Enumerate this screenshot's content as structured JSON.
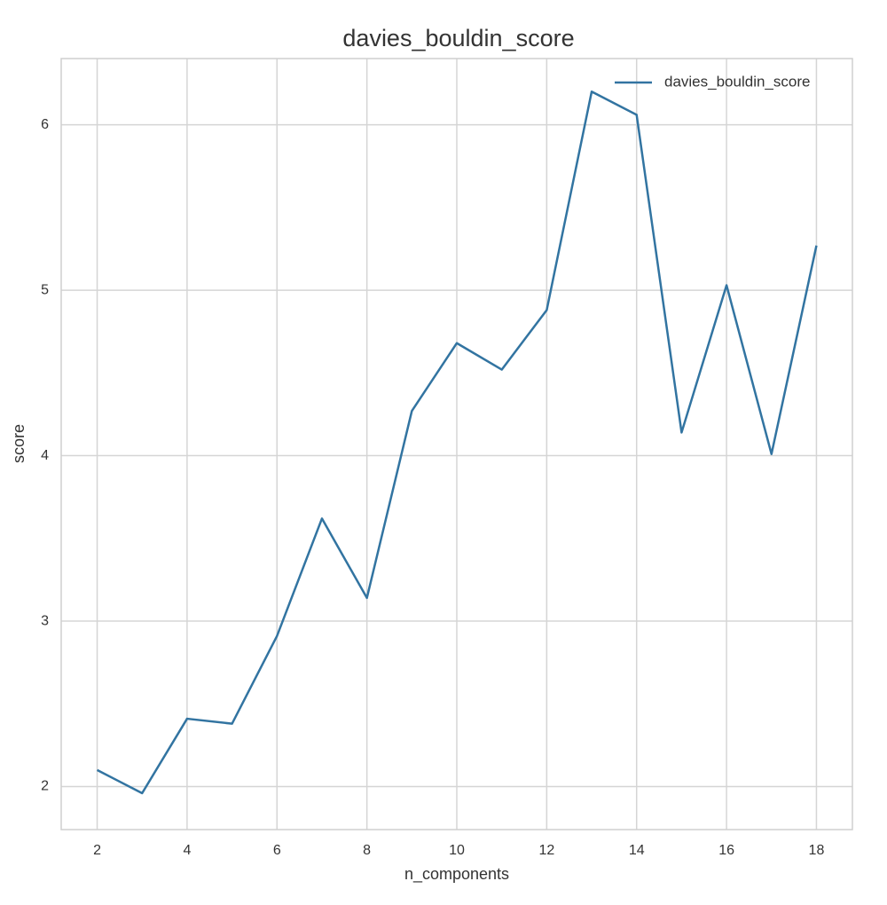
{
  "chart_data": {
    "type": "line",
    "title": "davies_bouldin_score",
    "x_label": "n_components",
    "y_label": "score",
    "x": [
      2,
      3,
      4,
      5,
      6,
      7,
      8,
      9,
      10,
      11,
      12,
      13,
      14,
      15,
      16,
      17,
      18
    ],
    "series": [
      {
        "name": "davies_bouldin_score",
        "color": "#3274a1",
        "values": [
          2.1,
          1.96,
          2.41,
          2.38,
          2.91,
          3.62,
          3.14,
          4.27,
          4.68,
          4.52,
          4.88,
          6.2,
          6.06,
          4.14,
          5.03,
          4.01,
          5.27
        ]
      }
    ],
    "xlim": [
      1.2,
      18.8
    ],
    "xticks": [
      2,
      4,
      6,
      8,
      10,
      12,
      14,
      16,
      18
    ],
    "ylim": [
      1.74,
      6.4
    ],
    "yticks": [
      2,
      3,
      4,
      5,
      6
    ],
    "grid": true,
    "legend": "upper right"
  }
}
